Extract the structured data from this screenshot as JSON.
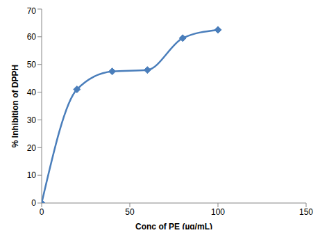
{
  "chart_data": {
    "type": "line",
    "x_label": "Conc of PE (µg/mL)",
    "y_label": "% Inhibition of DPPH",
    "x": [
      0,
      20,
      40,
      60,
      80,
      100
    ],
    "values": [
      0,
      41,
      47.5,
      48,
      59.5,
      62.5
    ],
    "color": "#4a7ebb",
    "marker": "diamond",
    "line_style": "smooth",
    "xlim": [
      0,
      150
    ],
    "xticks": [
      0,
      50,
      100,
      150
    ],
    "ylim": [
      0,
      70
    ],
    "yticks": [
      0,
      10,
      20,
      30,
      40,
      50,
      60,
      70
    ],
    "grid": false
  }
}
